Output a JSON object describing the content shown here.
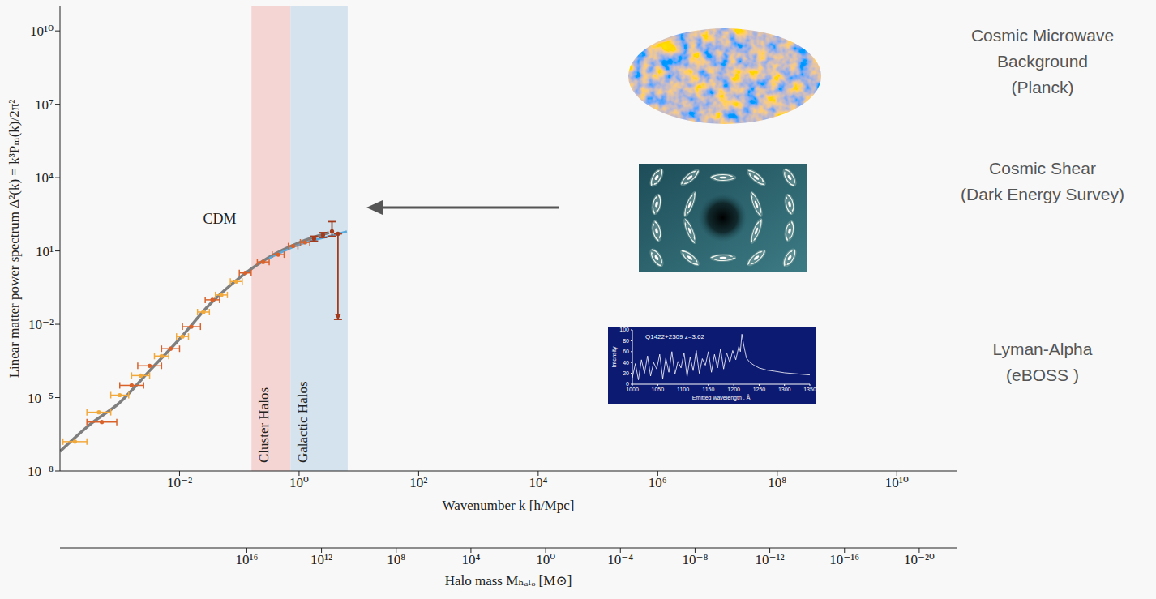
{
  "chart_data": [
    {
      "type": "scatter",
      "log": true,
      "y_label": "Linear matter power spectrum Δ²(k) = k³Pₘ(k)/2π²",
      "x_label": "Wavenumber k [h/Mpc]",
      "xlim": [
        0.0001,
        100000000000
      ],
      "xticks": [
        {
          "value": 0.01,
          "label": "10⁻²"
        },
        {
          "value": 1,
          "label": "10⁰"
        },
        {
          "value": 100,
          "label": "10²"
        },
        {
          "value": 10000,
          "label": "10⁴"
        },
        {
          "value": 1000000,
          "label": "10⁶"
        },
        {
          "value": 100000000,
          "label": "10⁸"
        },
        {
          "value": 10000000000,
          "label": "10¹⁰"
        }
      ],
      "ylim": [
        1e-08,
        100000000000
      ],
      "yticks": [
        {
          "value": 1e-08,
          "label": "10⁻⁸"
        },
        {
          "value": 1e-05,
          "label": "10⁻⁵"
        },
        {
          "value": 0.01,
          "label": "10⁻²"
        },
        {
          "value": 10,
          "label": "10¹"
        },
        {
          "value": 10000,
          "label": "10⁴"
        },
        {
          "value": 10000000,
          "label": "10⁷"
        },
        {
          "value": 10000000000,
          "label": "10¹⁰"
        }
      ],
      "x2_label": "Halo mass Mₕₐₗₒ [M⊙]",
      "x2lim": [
        1e+26,
        1e-22
      ],
      "x2ticks": [
        {
          "value": 1e+16,
          "label": "10¹⁶"
        },
        {
          "value": 1000000000000.0,
          "label": "10¹²"
        },
        {
          "value": 100000000,
          "label": "10⁸"
        },
        {
          "value": 10000,
          "label": "10⁴"
        },
        {
          "value": 1,
          "label": "10⁰"
        },
        {
          "value": 0.0001,
          "label": "10⁻⁴"
        },
        {
          "value": 1e-08,
          "label": "10⁻⁸"
        },
        {
          "value": 1e-12,
          "label": "10⁻¹²"
        },
        {
          "value": 1e-16,
          "label": "10⁻¹⁶"
        },
        {
          "value": 1e-20,
          "label": "10⁻²⁰"
        }
      ],
      "regions": [
        {
          "label": "Cluster Halos",
          "x": [
            0.16,
            0.72
          ],
          "color": "#f5d4d4"
        },
        {
          "label": "Galactic Halos",
          "x": [
            0.72,
            6.5
          ],
          "color": "#d4e3ee"
        }
      ],
      "series": [
        {
          "name": "CDM",
          "type": "line",
          "color": "#7f7f7f",
          "x": [
            0.0001,
            0.000316,
            0.001,
            0.00316,
            0.01,
            0.0316,
            0.1,
            0.316,
            1,
            3.16
          ],
          "values": [
            6.3e-08,
            7.9e-07,
            6.3e-06,
            0.000126,
            0.0025,
            0.063,
            0.79,
            5.6,
            22,
            56
          ]
        },
        {
          "type": "line",
          "color": "#5aa9dc",
          "x": [
            0.316,
            1,
            3.16,
            6.3
          ],
          "values": [
            5,
            18,
            40,
            63
          ]
        },
        {
          "type": "scatter",
          "color": "#f2a93b",
          "x": [
            0.000178,
            0.000447,
            0.001,
            0.00224,
            0.00501,
            0.0112,
            0.0251,
            0.0501,
            0.0891
          ],
          "values": [
            1.58e-07,
            2.51e-06,
            1.26e-05,
            7.94e-05,
            0.000501,
            0.00316,
            0.0316,
            0.158,
            0.562
          ],
          "x_range": [
            [
              0.000112,
              0.000282
            ],
            [
              0.000282,
              0.000708
            ],
            [
              0.000708,
              0.00141
            ],
            [
              0.00158,
              0.00316
            ],
            [
              0.0038,
              0.0066
            ],
            [
              0.0089,
              0.0141
            ],
            [
              0.02,
              0.0316
            ],
            [
              0.0398,
              0.0631
            ],
            [
              0.0708,
              0.112
            ]
          ]
        },
        {
          "type": "scatter",
          "color": "#d9622b",
          "x": [
            0.000501,
            0.00158,
            0.00316,
            0.00708,
            0.0158,
            0.0355,
            0.126,
            0.251,
            0.447,
            0.794,
            1.26
          ],
          "values": [
            1e-06,
            3.16e-05,
            0.0002,
            0.001,
            0.00794,
            0.1,
            1.26,
            3.55,
            7.08,
            15.8,
            22.4
          ],
          "x_range": [
            [
              0.000282,
              0.000891
            ],
            [
              0.001,
              0.00251
            ],
            [
              0.002,
              0.00501
            ],
            [
              0.00501,
              0.01
            ],
            [
              0.0112,
              0.0224
            ],
            [
              0.0269,
              0.0468
            ],
            [
              0.1,
              0.158
            ],
            [
              0.2,
              0.316
            ],
            [
              0.355,
              0.562
            ],
            [
              0.661,
              0.955
            ],
            [
              1.05,
              1.51
            ]
          ]
        },
        {
          "type": "scatter",
          "color": "#a23a1b",
          "x": [
            1.78,
            2.51,
            3.55,
            4.47
          ],
          "values": [
            31.6,
            44.7,
            63.1,
            50.1
          ],
          "y_range": [
            [
              25.1,
              39.8
            ],
            [
              35.5,
              56.2
            ],
            [
              39.8,
              158
            ],
            [
              0.0158,
              50.1
            ]
          ],
          "upper_limit": [
            false,
            false,
            false,
            true
          ]
        }
      ]
    },
    {
      "type": "line",
      "title": "Q1422+2309 z=3.62",
      "x_label": "Emitted wavelength , Å",
      "y_label": "Intensity",
      "xlim": [
        1000,
        1350
      ],
      "xticks": [
        1000,
        1050,
        1100,
        1150,
        1200,
        1250,
        1300,
        1350
      ],
      "ylim": [
        0,
        100
      ],
      "yticks": [
        0,
        20,
        40,
        60,
        80,
        100
      ],
      "color": "#ffffff",
      "x": [
        1000,
        1006,
        1012,
        1018,
        1024,
        1030,
        1036,
        1042,
        1048,
        1054,
        1060,
        1066,
        1072,
        1078,
        1084,
        1090,
        1096,
        1102,
        1108,
        1114,
        1120,
        1126,
        1132,
        1138,
        1144,
        1150,
        1156,
        1162,
        1168,
        1174,
        1180,
        1186,
        1192,
        1198,
        1204,
        1210,
        1213,
        1216,
        1220,
        1225,
        1232,
        1240,
        1250,
        1265,
        1280,
        1300,
        1325,
        1350
      ],
      "values": [
        12,
        38,
        8,
        45,
        20,
        52,
        15,
        40,
        28,
        55,
        10,
        48,
        22,
        60,
        18,
        42,
        30,
        58,
        14,
        50,
        25,
        62,
        20,
        47,
        35,
        60,
        22,
        55,
        30,
        65,
        28,
        58,
        40,
        62,
        45,
        70,
        60,
        92,
        70,
        48,
        40,
        35,
        30,
        26,
        24,
        21,
        19,
        17
      ]
    }
  ],
  "probes": [
    [
      "Cosmic Microwave",
      "Background",
      "(Planck)"
    ],
    [
      "Cosmic Shear",
      "(Dark Energy Survey)"
    ],
    [
      "Lyman-Alpha",
      "(eBOSS )"
    ]
  ]
}
